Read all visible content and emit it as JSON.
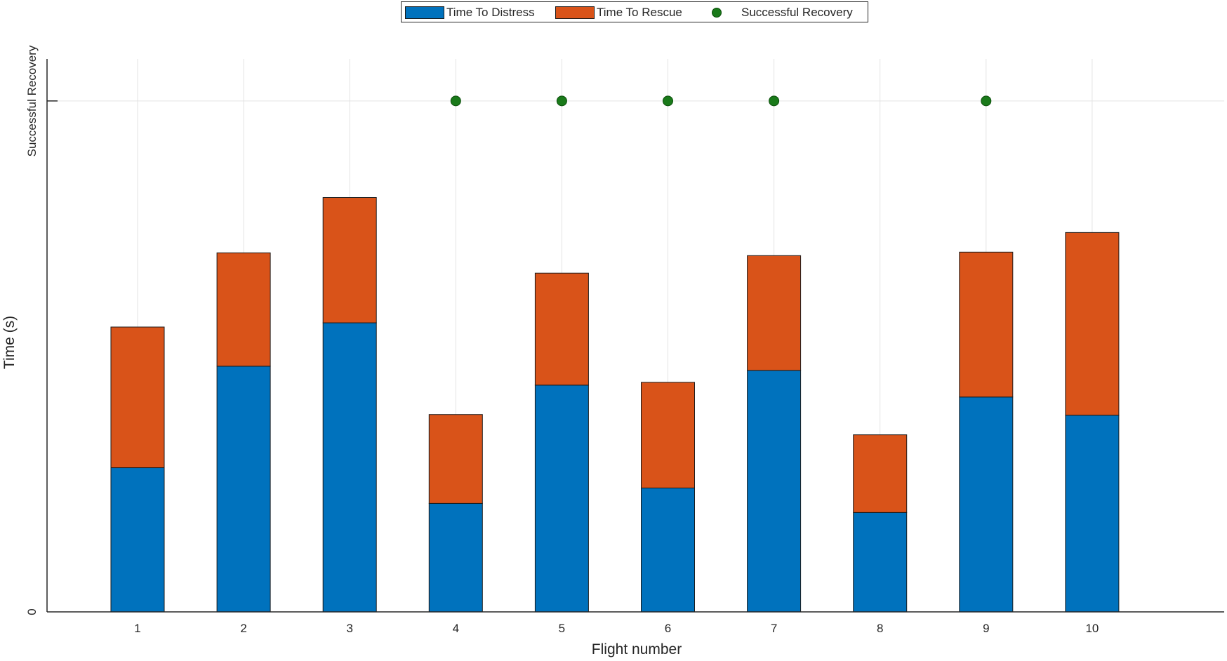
{
  "chart_data": {
    "type": "bar",
    "stacked": true,
    "categories": [
      "1",
      "2",
      "3",
      "4",
      "5",
      "6",
      "7",
      "8",
      "9",
      "10"
    ],
    "series": [
      {
        "name": "Time To Distress",
        "color": "#0072BD",
        "values": [
          206,
          351,
          413,
          155,
          324,
          177,
          345,
          142,
          307,
          281
        ]
      },
      {
        "name": "Time To Rescue",
        "color": "#D95319",
        "values": [
          201,
          162,
          179,
          127,
          160,
          151,
          164,
          111,
          207,
          261
        ]
      }
    ],
    "markers": {
      "name": "Successful Recovery",
      "color": "#1a7a1a",
      "x": [
        "4",
        "5",
        "6",
        "7",
        "9"
      ],
      "y_label": "Successful Recovery"
    },
    "xlabel": "Flight number",
    "ylabel": "Time (s)",
    "y_tick_labels": [
      "0",
      "Successful Recovery"
    ],
    "ylim": [
      0,
      790
    ],
    "marker_level": 730,
    "grid": true,
    "legend_position": "top"
  }
}
